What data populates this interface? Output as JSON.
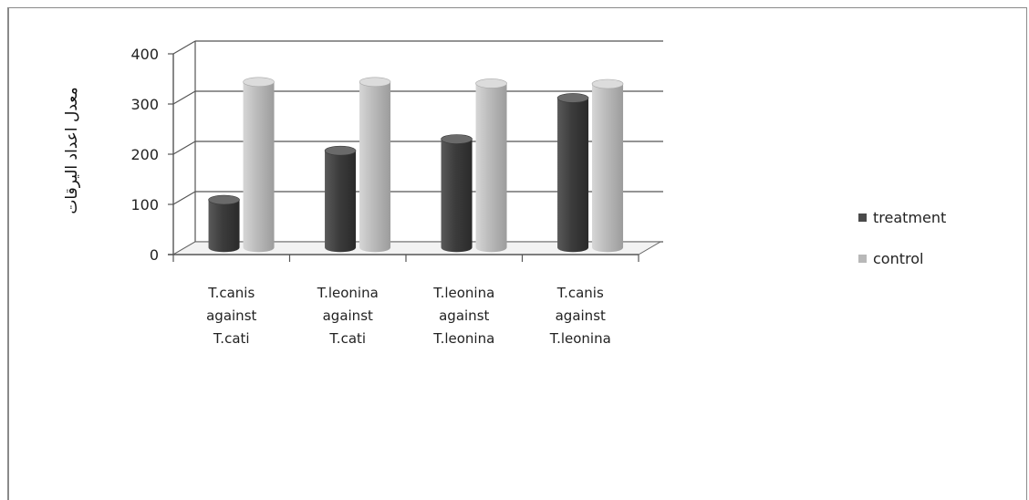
{
  "chart_data": {
    "type": "bar",
    "ylabel": "معدل اعداد اليرقات",
    "ylim": [
      0,
      400
    ],
    "yticks": [
      "0",
      "100",
      "200",
      "300",
      "400"
    ],
    "categories": [
      [
        "T.canis",
        "against",
        "T.cati"
      ],
      [
        "T.leonina",
        "against",
        "T.cati"
      ],
      [
        "T.leonina",
        "against",
        "T.leonina"
      ],
      [
        "T.canis",
        "against",
        "T.leonina"
      ]
    ],
    "series": [
      {
        "name": "treatment",
        "values": [
          95,
          193,
          216,
          298
        ],
        "color": "#4a4a4a"
      },
      {
        "name": "control",
        "values": [
          330,
          330,
          327,
          326
        ],
        "color": "#b8b8b8"
      }
    ],
    "grid": true,
    "legend_position": "right"
  }
}
